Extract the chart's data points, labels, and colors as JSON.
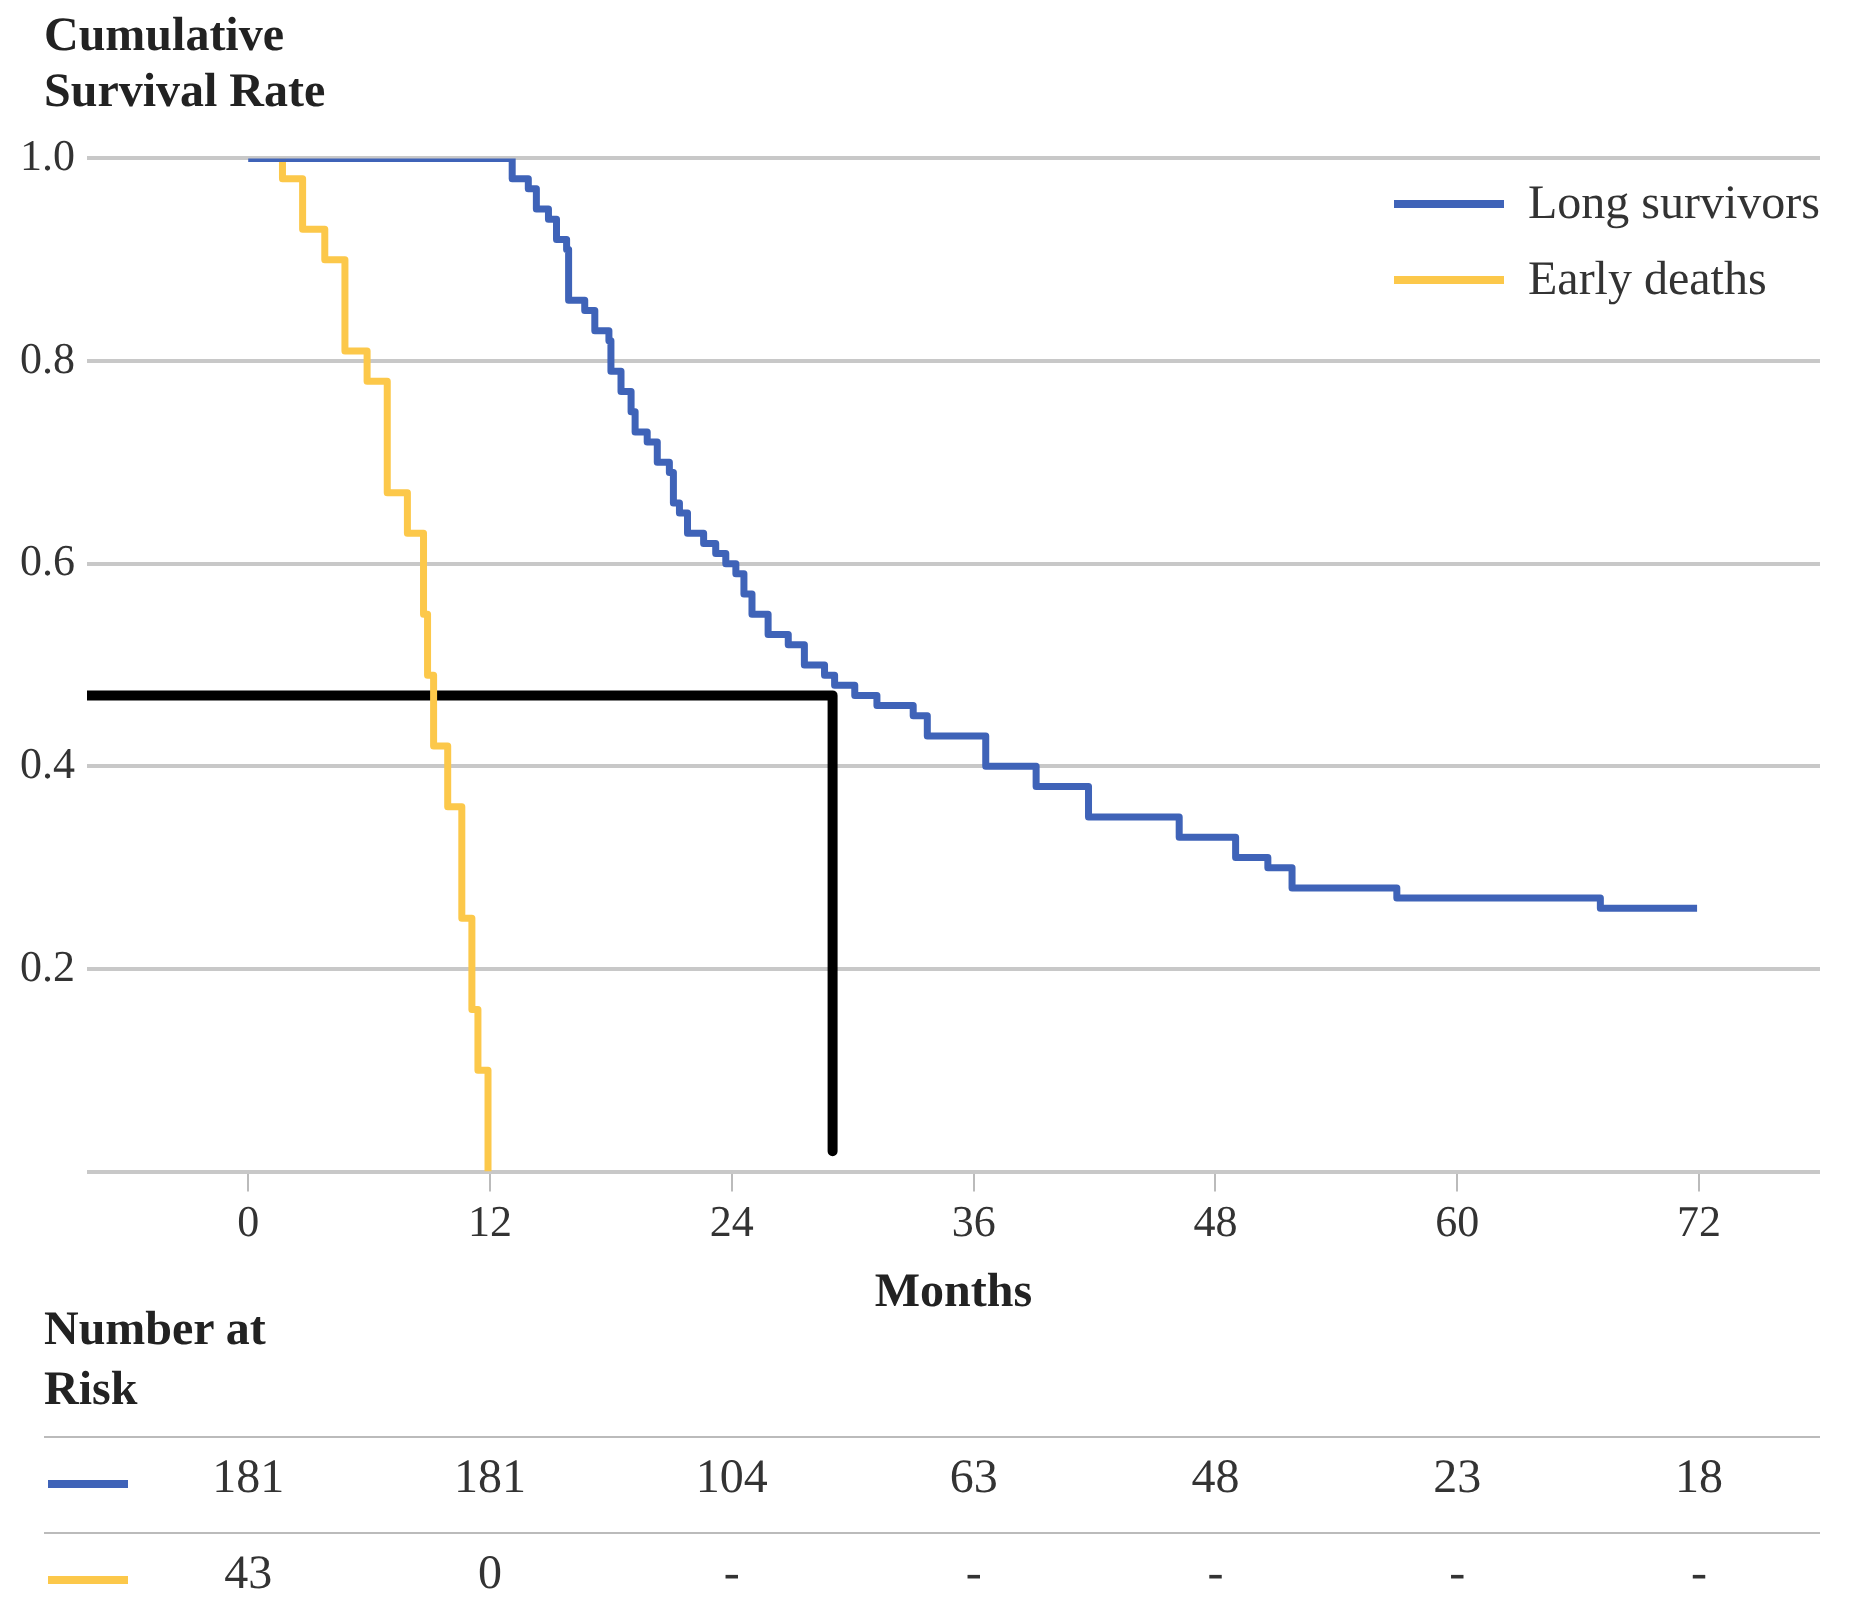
{
  "chart_data": {
    "type": "step",
    "ylabel": "Cumulative Survival Rate",
    "xlabel": "Months",
    "xlim": [
      -8,
      78
    ],
    "xticks": [
      0,
      12,
      24,
      36,
      48,
      60,
      72
    ],
    "ylim": [
      0,
      1
    ],
    "yticks": [
      {
        "value": 0,
        "label": null
      },
      0.2,
      0.4,
      0.6,
      0.8,
      {
        "value": 1,
        "label": "1.0"
      }
    ],
    "grid": "y",
    "legend": "top right",
    "series": [
      {
        "name": "Long survivors",
        "color": "#3f63b8",
        "x": [
          0,
          12.5,
          13.1,
          13.9,
          14.3,
          14.9,
          15.3,
          15.8,
          15.9,
          16.7,
          17.2,
          17.9,
          18.0,
          18.5,
          19.0,
          19.2,
          19.8,
          20.3,
          20.9,
          21.1,
          21.4,
          21.8,
          22.6,
          23.2,
          23.7,
          24.2,
          24.6,
          25.0,
          25.8,
          26.8,
          27.6,
          28.6,
          29.1,
          30.1,
          31.2,
          32.0,
          33.0,
          33.7,
          36.6,
          39.1,
          41.7,
          46.2,
          49.0,
          50.6,
          51.8,
          57.0,
          67.1,
          71.9
        ],
        "values": [
          1,
          1,
          0.98,
          0.97,
          0.95,
          0.94,
          0.92,
          0.91,
          0.86,
          0.85,
          0.83,
          0.82,
          0.79,
          0.77,
          0.75,
          0.73,
          0.72,
          0.7,
          0.69,
          0.66,
          0.65,
          0.63,
          0.62,
          0.61,
          0.6,
          0.59,
          0.57,
          0.55,
          0.53,
          0.52,
          0.5,
          0.49,
          0.48,
          0.47,
          0.46,
          0.46,
          0.45,
          0.43,
          0.4,
          0.38,
          0.35,
          0.33,
          0.31,
          0.3,
          0.28,
          0.27,
          0.26,
          0.26
        ]
      },
      {
        "name": "Early deaths",
        "color": "#fcc84a",
        "x": [
          1.7,
          1.7,
          2.7,
          3.8,
          4.8,
          5.9,
          6.9,
          7.9,
          8.7,
          8.9,
          9.2,
          9.9,
          10.6,
          11.1,
          11.4,
          11.9
        ],
        "values": [
          1,
          0.98,
          0.93,
          0.9,
          0.81,
          0.78,
          0.67,
          0.63,
          0.55,
          0.49,
          0.42,
          0.36,
          0.25,
          0.16,
          0.1,
          0
        ]
      },
      {
        "type": "line",
        "color": "#000000",
        "x": [
          -8,
          29,
          29
        ],
        "values": [
          0.47,
          0.47,
          0.02
        ]
      }
    ],
    "annotations": [
      "Number at Risk",
      "181",
      "181",
      "104",
      "63",
      "48",
      "23",
      "18",
      "43",
      "0",
      "-",
      "-",
      "-",
      "-",
      "-"
    ]
  }
}
